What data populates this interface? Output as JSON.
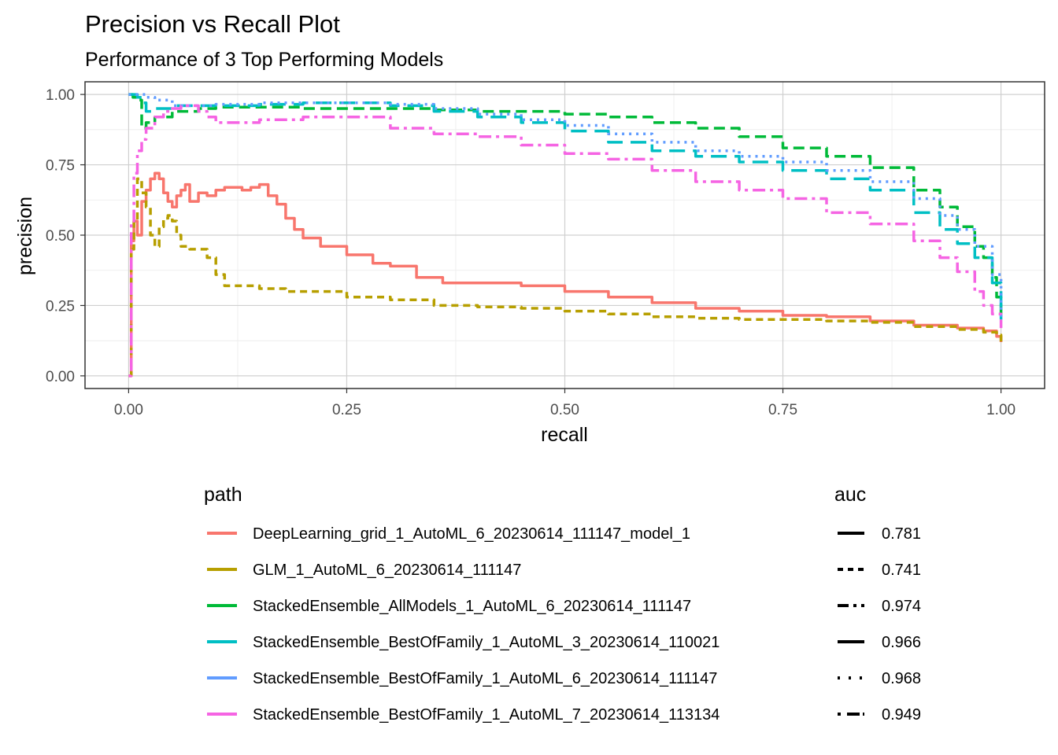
{
  "chart_data": {
    "type": "line",
    "title": "Precision vs Recall Plot",
    "subtitle": "Performance of 3 Top Performing Models",
    "xlabel": "recall",
    "ylabel": "precision",
    "xlim": [
      -0.05,
      1.05
    ],
    "ylim": [
      -0.045,
      1.045
    ],
    "xticks": [
      0.0,
      0.25,
      0.5,
      0.75,
      1.0
    ],
    "xtick_labels": [
      "0.00",
      "0.25",
      "0.50",
      "0.75",
      "1.00"
    ],
    "yticks": [
      0.0,
      0.25,
      0.5,
      0.75,
      1.0
    ],
    "ytick_labels": [
      "0.00",
      "0.25",
      "0.50",
      "0.75",
      "1.00"
    ],
    "grid": true,
    "legend_position": "bottom",
    "legend_titles": {
      "color": "path",
      "linetype": "auc"
    },
    "series": [
      {
        "name": "DeepLearning_grid_1_AutoML_6_20230614_111147_model_1",
        "auc": "0.781",
        "color": "#F8766D",
        "dash": "",
        "x": [
          0.0,
          0.003,
          0.006,
          0.01,
          0.015,
          0.02,
          0.025,
          0.03,
          0.035,
          0.04,
          0.045,
          0.05,
          0.055,
          0.06,
          0.065,
          0.07,
          0.08,
          0.09,
          0.1,
          0.11,
          0.12,
          0.13,
          0.14,
          0.15,
          0.16,
          0.17,
          0.18,
          0.19,
          0.2,
          0.22,
          0.25,
          0.28,
          0.3,
          0.33,
          0.36,
          0.4,
          0.45,
          0.5,
          0.55,
          0.6,
          0.65,
          0.7,
          0.75,
          0.8,
          0.85,
          0.9,
          0.95,
          0.98,
          0.995,
          1.0
        ],
        "y": [
          0.0,
          0.48,
          0.55,
          0.5,
          0.62,
          0.66,
          0.7,
          0.72,
          0.7,
          0.65,
          0.62,
          0.6,
          0.64,
          0.66,
          0.68,
          0.62,
          0.65,
          0.64,
          0.66,
          0.67,
          0.67,
          0.66,
          0.67,
          0.68,
          0.64,
          0.61,
          0.56,
          0.52,
          0.49,
          0.46,
          0.43,
          0.4,
          0.39,
          0.35,
          0.33,
          0.33,
          0.32,
          0.3,
          0.28,
          0.26,
          0.24,
          0.23,
          0.215,
          0.21,
          0.195,
          0.18,
          0.17,
          0.16,
          0.14,
          0.12
        ]
      },
      {
        "name": "GLM_1_AutoML_6_20230614_111147",
        "auc": "0.741",
        "color": "#B79F00",
        "dash": "9 6",
        "x": [
          0.0,
          0.003,
          0.006,
          0.01,
          0.015,
          0.02,
          0.025,
          0.03,
          0.035,
          0.04,
          0.045,
          0.05,
          0.055,
          0.06,
          0.07,
          0.08,
          0.09,
          0.1,
          0.11,
          0.12,
          0.15,
          0.18,
          0.2,
          0.25,
          0.3,
          0.35,
          0.4,
          0.45,
          0.5,
          0.55,
          0.6,
          0.65,
          0.7,
          0.75,
          0.8,
          0.85,
          0.9,
          0.95,
          0.98,
          0.995,
          1.0
        ],
        "y": [
          0.0,
          0.45,
          0.55,
          0.7,
          0.65,
          0.6,
          0.5,
          0.46,
          0.53,
          0.56,
          0.57,
          0.55,
          0.5,
          0.46,
          0.45,
          0.45,
          0.42,
          0.36,
          0.32,
          0.32,
          0.31,
          0.3,
          0.3,
          0.28,
          0.27,
          0.25,
          0.245,
          0.24,
          0.23,
          0.22,
          0.21,
          0.205,
          0.2,
          0.2,
          0.195,
          0.19,
          0.175,
          0.165,
          0.155,
          0.145,
          0.12
        ]
      },
      {
        "name": "StackedEnsemble_AllModels_1_AutoML_6_20230614_111147",
        "auc": "0.974",
        "color": "#00BA38",
        "dash": "14 7",
        "x": [
          0.0,
          0.005,
          0.01,
          0.015,
          0.02,
          0.03,
          0.05,
          0.08,
          0.1,
          0.15,
          0.2,
          0.25,
          0.3,
          0.35,
          0.4,
          0.45,
          0.5,
          0.55,
          0.6,
          0.65,
          0.7,
          0.75,
          0.8,
          0.85,
          0.9,
          0.93,
          0.95,
          0.97,
          0.98,
          0.99,
          0.995,
          1.0
        ],
        "y": [
          1.0,
          0.99,
          0.98,
          0.88,
          0.9,
          0.92,
          0.94,
          0.95,
          0.955,
          0.955,
          0.95,
          0.95,
          0.95,
          0.945,
          0.94,
          0.94,
          0.93,
          0.92,
          0.9,
          0.88,
          0.85,
          0.81,
          0.78,
          0.74,
          0.66,
          0.6,
          0.53,
          0.46,
          0.42,
          0.35,
          0.28,
          0.21
        ]
      },
      {
        "name": "StackedEnsemble_BestOfFamily_1_AutoML_3_20230614_110021",
        "auc": "0.966",
        "color": "#00BFC4",
        "dash": "20 10",
        "x": [
          0.0,
          0.005,
          0.01,
          0.015,
          0.02,
          0.03,
          0.05,
          0.08,
          0.1,
          0.15,
          0.2,
          0.25,
          0.3,
          0.35,
          0.4,
          0.45,
          0.5,
          0.55,
          0.6,
          0.65,
          0.7,
          0.75,
          0.8,
          0.85,
          0.9,
          0.93,
          0.95,
          0.97,
          0.99,
          1.0
        ],
        "y": [
          1.0,
          1.0,
          0.99,
          0.97,
          0.94,
          0.95,
          0.96,
          0.96,
          0.96,
          0.965,
          0.97,
          0.97,
          0.96,
          0.94,
          0.92,
          0.9,
          0.87,
          0.83,
          0.8,
          0.78,
          0.76,
          0.73,
          0.7,
          0.66,
          0.58,
          0.52,
          0.47,
          0.42,
          0.33,
          0.2
        ]
      },
      {
        "name": "StackedEnsemble_BestOfFamily_1_AutoML_6_20230614_111147",
        "auc": "0.968",
        "color": "#619CFF",
        "dash": "3 6",
        "x": [
          0.0,
          0.005,
          0.01,
          0.02,
          0.03,
          0.05,
          0.08,
          0.1,
          0.15,
          0.2,
          0.25,
          0.3,
          0.35,
          0.4,
          0.45,
          0.5,
          0.55,
          0.6,
          0.65,
          0.7,
          0.75,
          0.8,
          0.85,
          0.9,
          0.93,
          0.95,
          0.97,
          0.99,
          1.0
        ],
        "y": [
          1.0,
          1.0,
          1.0,
          0.99,
          0.98,
          0.96,
          0.96,
          0.965,
          0.97,
          0.97,
          0.97,
          0.965,
          0.95,
          0.93,
          0.91,
          0.89,
          0.86,
          0.83,
          0.8,
          0.78,
          0.76,
          0.73,
          0.69,
          0.63,
          0.57,
          0.52,
          0.46,
          0.36,
          0.2
        ]
      },
      {
        "name": "StackedEnsemble_BestOfFamily_1_AutoML_7_20230614_113134",
        "auc": "0.949",
        "color": "#F564E3",
        "dash": "4 6 16 6",
        "x": [
          0.0,
          0.003,
          0.006,
          0.01,
          0.015,
          0.02,
          0.03,
          0.04,
          0.05,
          0.06,
          0.07,
          0.08,
          0.09,
          0.1,
          0.12,
          0.15,
          0.2,
          0.25,
          0.3,
          0.35,
          0.4,
          0.45,
          0.5,
          0.55,
          0.6,
          0.65,
          0.7,
          0.75,
          0.8,
          0.85,
          0.9,
          0.93,
          0.95,
          0.97,
          0.98,
          0.99,
          1.0
        ],
        "y": [
          0.0,
          0.55,
          0.72,
          0.8,
          0.84,
          0.88,
          0.92,
          0.94,
          0.95,
          0.96,
          0.96,
          0.94,
          0.92,
          0.9,
          0.9,
          0.91,
          0.92,
          0.92,
          0.88,
          0.86,
          0.85,
          0.82,
          0.79,
          0.77,
          0.73,
          0.69,
          0.66,
          0.63,
          0.58,
          0.54,
          0.48,
          0.42,
          0.37,
          0.3,
          0.25,
          0.22,
          0.17
        ]
      }
    ],
    "linetype_legend": [
      {
        "auc": "0.781",
        "dash": ""
      },
      {
        "auc": "0.741",
        "dash": "7 6"
      },
      {
        "auc": "0.974",
        "dash": "14 6 4 6"
      },
      {
        "auc": "0.966",
        "dash": ""
      },
      {
        "auc": "0.968",
        "dash": "3 11"
      },
      {
        "auc": "0.949",
        "dash": "4 8 16 4"
      }
    ]
  }
}
